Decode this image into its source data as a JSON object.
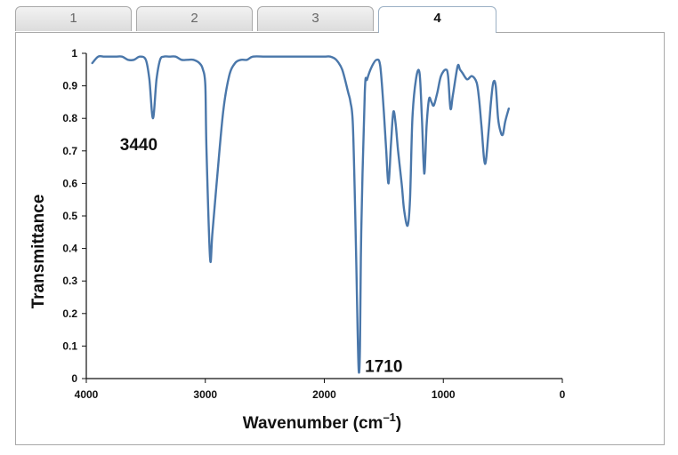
{
  "tabs": [
    {
      "label": "1",
      "active": false
    },
    {
      "label": "2",
      "active": false
    },
    {
      "label": "3",
      "active": false
    },
    {
      "label": "4",
      "active": true
    }
  ],
  "chart_data": {
    "type": "line",
    "xlabel": "Wavenumber (cm",
    "xlabel_sup": "–1",
    "xlabel_end": ")",
    "ylabel": "Transmittance",
    "xlim": [
      4000,
      0
    ],
    "ylim": [
      0,
      1
    ],
    "x_ticks": [
      "4000",
      "3000",
      "2000",
      "1000",
      "0"
    ],
    "y_ticks": [
      "0",
      "0.1",
      "0.2",
      "0.3",
      "0.4",
      "0.5",
      "0.6",
      "0.7",
      "0.8",
      "0.9",
      "1"
    ],
    "grid": false,
    "line_color": "#4a77aa",
    "annotations": [
      {
        "text": "3440",
        "x": 3440,
        "y": 0.8
      },
      {
        "text": "1710",
        "x": 1710,
        "y": 0.02
      }
    ],
    "series": [
      {
        "x": [
          3950,
          3900,
          3850,
          3800,
          3750,
          3700,
          3650,
          3600,
          3550,
          3500,
          3470,
          3440,
          3410,
          3380,
          3350,
          3300,
          3250,
          3200,
          3150,
          3100,
          3050,
          3020,
          3000,
          2990,
          2960,
          2940,
          2900,
          2850,
          2800,
          2750,
          2700,
          2650,
          2600,
          2500,
          2400,
          2300,
          2200,
          2100,
          2000,
          1950,
          1900,
          1850,
          1800,
          1780,
          1760,
          1740,
          1720,
          1710,
          1700,
          1690,
          1660,
          1640,
          1600,
          1560,
          1530,
          1500,
          1480,
          1460,
          1440,
          1420,
          1400,
          1380,
          1350,
          1330,
          1300,
          1280,
          1260,
          1230,
          1200,
          1180,
          1160,
          1140,
          1120,
          1100,
          1080,
          1050,
          1020,
          980,
          960,
          940,
          920,
          880,
          860,
          840,
          800,
          760,
          720,
          700,
          680,
          650,
          620,
          600,
          580,
          560,
          540,
          520,
          500,
          480,
          450
        ],
        "y": [
          0.97,
          0.99,
          0.99,
          0.99,
          0.99,
          0.99,
          0.98,
          0.98,
          0.99,
          0.98,
          0.92,
          0.8,
          0.92,
          0.98,
          0.99,
          0.99,
          0.99,
          0.98,
          0.98,
          0.98,
          0.97,
          0.95,
          0.9,
          0.7,
          0.37,
          0.45,
          0.62,
          0.82,
          0.93,
          0.97,
          0.98,
          0.98,
          0.99,
          0.99,
          0.99,
          0.99,
          0.99,
          0.99,
          0.99,
          0.99,
          0.98,
          0.95,
          0.88,
          0.85,
          0.78,
          0.5,
          0.15,
          0.02,
          0.1,
          0.45,
          0.88,
          0.92,
          0.96,
          0.98,
          0.96,
          0.82,
          0.7,
          0.6,
          0.72,
          0.82,
          0.78,
          0.7,
          0.6,
          0.52,
          0.47,
          0.55,
          0.8,
          0.92,
          0.94,
          0.8,
          0.63,
          0.78,
          0.86,
          0.85,
          0.84,
          0.88,
          0.93,
          0.95,
          0.93,
          0.83,
          0.87,
          0.96,
          0.95,
          0.94,
          0.92,
          0.93,
          0.91,
          0.86,
          0.78,
          0.66,
          0.76,
          0.85,
          0.91,
          0.9,
          0.8,
          0.76,
          0.75,
          0.79,
          0.83
        ]
      }
    ]
  }
}
